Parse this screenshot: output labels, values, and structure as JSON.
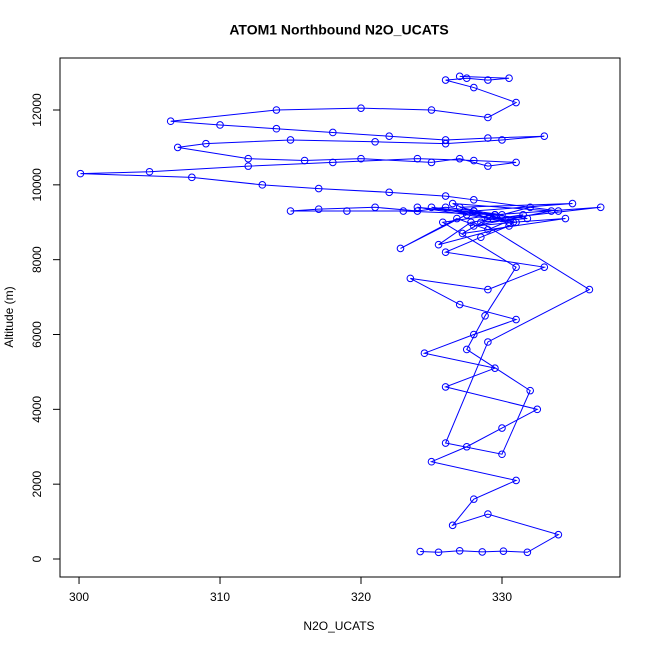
{
  "chart_data": {
    "type": "line",
    "title": "ATOM1 Northbound N2O_UCATS",
    "x_label": "N2O_UCATS",
    "y_label": "Altitude (m)",
    "color": "#0000ff",
    "markers": true,
    "xlim": [
      298.65,
      338.37
    ],
    "ylim": [
      -481,
      13390
    ],
    "xticks": [
      300,
      310,
      320,
      330
    ],
    "yticks": [
      0,
      2000,
      4000,
      6000,
      8000,
      10000,
      12000
    ],
    "x": [
      324.2,
      325.5,
      327,
      328.6,
      330.1,
      331.8,
      334,
      329,
      326.5,
      328,
      331,
      325,
      327.5,
      330,
      332.5,
      326,
      329.5,
      324.5,
      328,
      331,
      327,
      323.5,
      329,
      333,
      326,
      328.5,
      330.5,
      325.5,
      327.8,
      331.5,
      329,
      326.8,
      322.8,
      328,
      330.8,
      334.5,
      327.2,
      329.5,
      325,
      331,
      328,
      333.5,
      326.5,
      329,
      330.5,
      327.5,
      324,
      331.8,
      328.5,
      336.2,
      329,
      326,
      330,
      332,
      327.5,
      328.8,
      331,
      325.8,
      329.5,
      337,
      330,
      328,
      335,
      327,
      329.5,
      323,
      319,
      315,
      317,
      321,
      324,
      326,
      328,
      330,
      332,
      334,
      328,
      326,
      322,
      317,
      313,
      308,
      300.1,
      305,
      312,
      318,
      324,
      328,
      331,
      329,
      327,
      325,
      320,
      316,
      312,
      307,
      309,
      315,
      321,
      326,
      330,
      333,
      329,
      326,
      322,
      318,
      314,
      310,
      306.5,
      314,
      320,
      325,
      329,
      331,
      328,
      326,
      327.5,
      329,
      330.5,
      327
    ],
    "values": [
      200,
      180,
      220,
      190,
      210,
      180,
      650,
      1200,
      900,
      1600,
      2100,
      2600,
      3000,
      3500,
      4000,
      4600,
      5100,
      5500,
      6000,
      6400,
      6800,
      7500,
      7200,
      7800,
      8200,
      8600,
      8900,
      8400,
      9000,
      9200,
      8800,
      9100,
      8300,
      9300,
      9000,
      9100,
      8700,
      9200,
      9400,
      9000,
      8900,
      9300,
      9500,
      9100,
      9000,
      9200,
      9400,
      9100,
      9000,
      7200,
      5800,
      3100,
      2800,
      4500,
      5600,
      6500,
      7800,
      9000,
      9200,
      9400,
      9100,
      9300,
      9500,
      9400,
      9200,
      9300,
      9300,
      9300,
      9350,
      9400,
      9300,
      9400,
      9300,
      9200,
      9400,
      9300,
      9600,
      9700,
      9800,
      9900,
      10000,
      10200,
      10300,
      10350,
      10500,
      10600,
      10700,
      10650,
      10600,
      10500,
      10700,
      10600,
      10700,
      10650,
      10700,
      11000,
      11100,
      11200,
      11150,
      11100,
      11200,
      11300,
      11250,
      11200,
      11300,
      11400,
      11500,
      11600,
      11700,
      12000,
      12050,
      12000,
      11800,
      12200,
      12600,
      12800,
      12850,
      12800,
      12850,
      12900
    ]
  }
}
